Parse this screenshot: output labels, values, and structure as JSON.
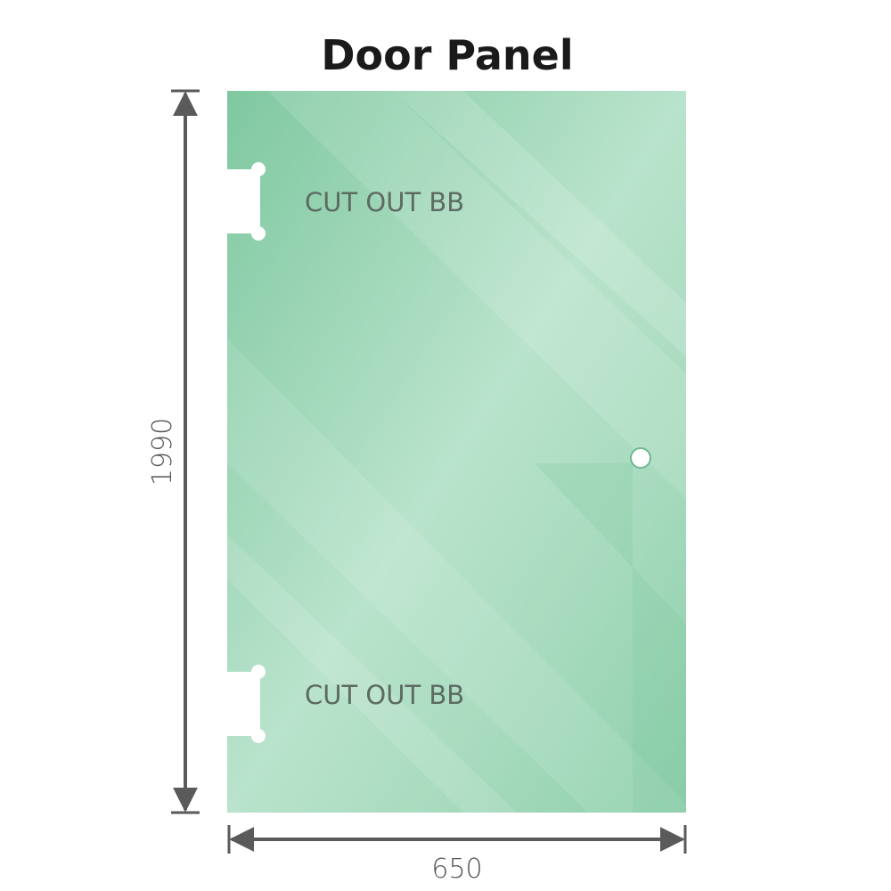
{
  "title": "Door Panel",
  "dimensions": {
    "height": "1990",
    "width": "650"
  },
  "cutouts": [
    {
      "label": "CUT OUT BB"
    },
    {
      "label": "CUT OUT BB"
    }
  ],
  "colors": {
    "glass": "#86cba6",
    "glass_light": "#bde5d0",
    "dimension_line": "#5a5a5a"
  }
}
